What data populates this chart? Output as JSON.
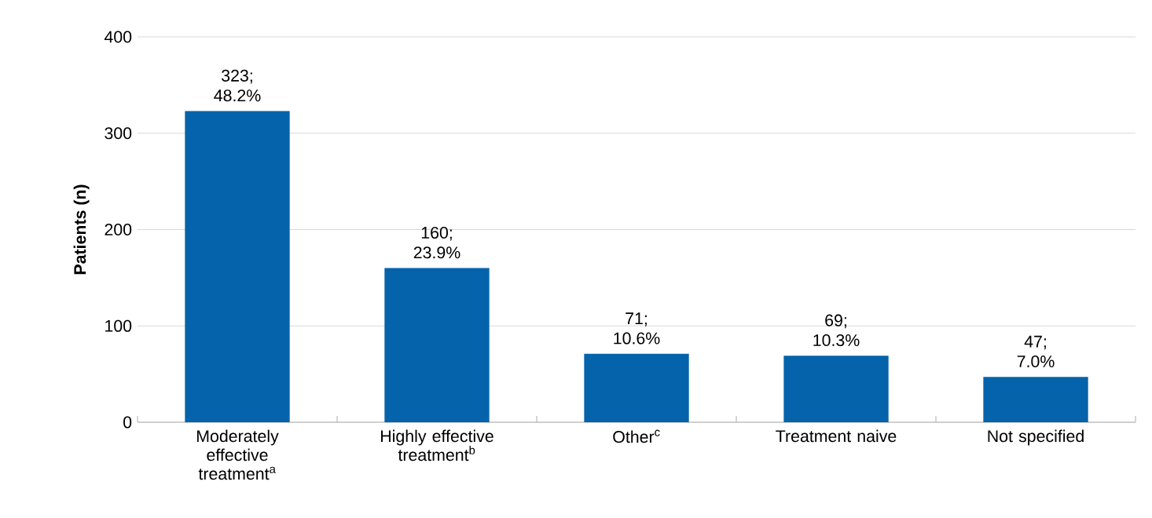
{
  "chart_data": {
    "type": "bar",
    "ylabel": "Patients (n)",
    "categories": [
      "Moderately effective treatment$^{a}$",
      "Highly effective treatment$^{b}$",
      "Other$^{c}$",
      "Treatment naive",
      "Not specified"
    ],
    "values": [
      323,
      160,
      71,
      69,
      47
    ],
    "value_labels": [
      "323; 48.2%",
      "160; 23.9%",
      "71; 10.6%",
      "69; 10.3%",
      "47; 7.0%"
    ],
    "color": "#0563ab",
    "ylim": [
      0,
      400
    ],
    "yticks": [
      0,
      100,
      200,
      300,
      400
    ],
    "grid": "y"
  }
}
